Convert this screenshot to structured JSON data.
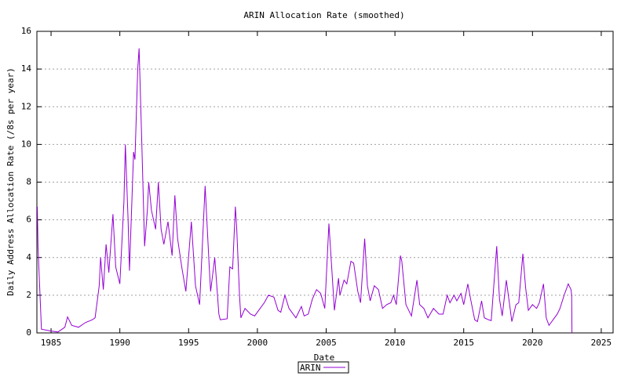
{
  "chart_data": {
    "type": "line",
    "title": "ARIN Allocation Rate (smoothed)",
    "xlabel": "Date",
    "ylabel": "Daily Address Allocation Rate (/8s per year)",
    "xlim": [
      1983.97,
      2025.86
    ],
    "ylim": [
      0,
      16
    ],
    "xticks": [
      1985,
      1990,
      1995,
      2000,
      2005,
      2010,
      2015,
      2020,
      2025
    ],
    "yticks": [
      0,
      2,
      4,
      6,
      8,
      10,
      12,
      14,
      16
    ],
    "grid": true,
    "legend": "bottom",
    "x": [
      1984.0,
      1984.05,
      1984.3,
      1985,
      1985.5,
      1986,
      1986.2,
      1986.5,
      1987,
      1987.5,
      1988,
      1988.2,
      1988.5,
      1988.6,
      1988.8,
      1989,
      1989.2,
      1989.5,
      1989.7,
      1990,
      1990.3,
      1990.4,
      1990.6,
      1990.7,
      1991,
      1991.1,
      1991.3,
      1991.4,
      1991.6,
      1991.8,
      1992,
      1992.1,
      1992.3,
      1992.6,
      1992.8,
      1993,
      1993.2,
      1993.5,
      1993.8,
      1994,
      1994.2,
      1994.5,
      1994.8,
      1995.2,
      1995.5,
      1995.8,
      1996.2,
      1996.5,
      1996.6,
      1996.9,
      1997.2,
      1997.3,
      1997.8,
      1998,
      1998.2,
      1998.4,
      1998.5,
      1998.7,
      1998.8,
      1999.1,
      1999.5,
      1999.8,
      2000.2,
      2000.5,
      2000.8,
      2001.2,
      2001.5,
      2001.7,
      2002,
      2002.3,
      2002.8,
      2003.2,
      2003.4,
      2003.7,
      2004,
      2004.3,
      2004.6,
      2004.9,
      2005.2,
      2005.4,
      2005.6,
      2005.9,
      2006,
      2006.3,
      2006.5,
      2006.8,
      2007,
      2007.3,
      2007.5,
      2007.8,
      2008,
      2008.2,
      2008.5,
      2008.8,
      2009.1,
      2009.4,
      2009.7,
      2009.9,
      2010.1,
      2010.4,
      2010.5,
      2010.8,
      2011.2,
      2011.6,
      2011.8,
      2012.1,
      2012.4,
      2012.8,
      2013.2,
      2013.5,
      2013.8,
      2014,
      2014.3,
      2014.5,
      2014.8,
      2015,
      2015.3,
      2015.5,
      2015.8,
      2016,
      2016.3,
      2016.5,
      2016.8,
      2017,
      2017.4,
      2017.6,
      2017.8,
      2018.1,
      2018.3,
      2018.5,
      2018.8,
      2019,
      2019.3,
      2019.5,
      2019.7,
      2020,
      2020.3,
      2020.5,
      2020.8,
      2021,
      2021.2,
      2021.5,
      2021.8,
      2022,
      2022.3,
      2022.6,
      2022.8,
      2022.85,
      2022.87
    ],
    "series": [
      {
        "name": "ARIN",
        "color": "#9400d3",
        "values": [
          6.7,
          4.6,
          0.2,
          0.1,
          0.05,
          0.3,
          0.85,
          0.4,
          0.3,
          0.55,
          0.7,
          0.8,
          2.5,
          4.0,
          2.3,
          4.7,
          3.2,
          6.3,
          3.5,
          2.6,
          7,
          10,
          6,
          3.3,
          9.6,
          9.2,
          14,
          15.1,
          10,
          4.6,
          6.5,
          8.0,
          6.5,
          5.5,
          8.0,
          5.5,
          4.7,
          5.9,
          4.1,
          7.3,
          5,
          3.5,
          2.2,
          5.9,
          2.5,
          1.5,
          7.8,
          3.5,
          2.2,
          4.0,
          1.0,
          0.7,
          0.75,
          3.5,
          3.4,
          6.7,
          5.5,
          2,
          0.8,
          1.3,
          1.0,
          0.9,
          1.3,
          1.6,
          2.0,
          1.9,
          1.2,
          1.1,
          2.0,
          1.3,
          0.8,
          1.4,
          0.9,
          1.0,
          1.8,
          2.3,
          2.1,
          1.3,
          5.8,
          3.5,
          1.2,
          2.9,
          2.0,
          2.8,
          2.6,
          3.8,
          3.7,
          2.2,
          1.6,
          5.0,
          2.5,
          1.7,
          2.5,
          2.3,
          1.3,
          1.5,
          1.6,
          2.0,
          1.5,
          4.1,
          3.8,
          1.5,
          0.9,
          2.8,
          1.5,
          1.3,
          0.8,
          1.3,
          1.0,
          1.0,
          2.0,
          1.6,
          2.0,
          1.7,
          2.1,
          1.5,
          2.6,
          1.8,
          0.7,
          0.6,
          1.7,
          0.8,
          0.7,
          0.65,
          4.6,
          1.8,
          0.9,
          2.8,
          1.7,
          0.6,
          1.5,
          1.6,
          4.2,
          2.4,
          1.2,
          1.5,
          1.3,
          1.6,
          2.6,
          0.8,
          0.4,
          0.7,
          1.0,
          1.3,
          2.0,
          2.6,
          2.3,
          2.0,
          0
        ]
      }
    ]
  }
}
